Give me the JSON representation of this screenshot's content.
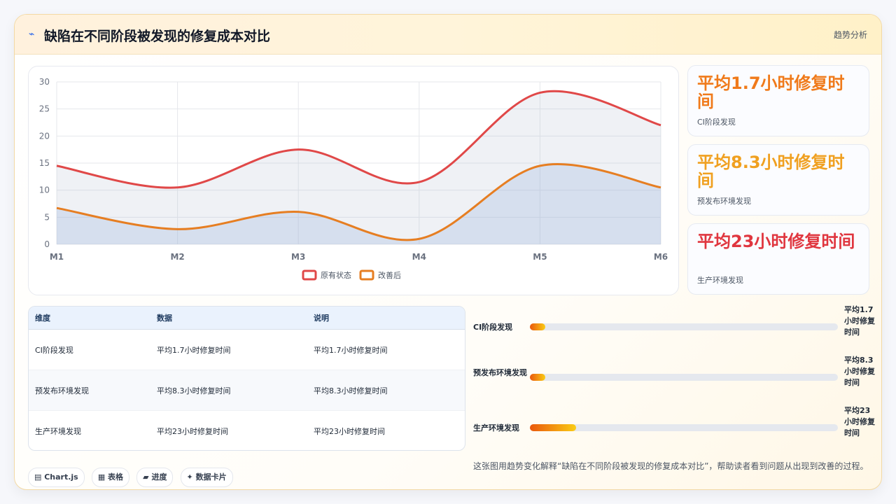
{
  "header": {
    "icon": "pulse-icon",
    "title": "缺陷在不同阶段被发现的修复成本对比",
    "tag": "趋势分析"
  },
  "chart_data": {
    "type": "line",
    "categories": [
      "M1",
      "M2",
      "M3",
      "M4",
      "M5",
      "M6"
    ],
    "series": [
      {
        "name": "原有状态",
        "values": [
          14.5,
          10.5,
          17.5,
          11.5,
          28,
          22
        ],
        "color": "#e04848"
      },
      {
        "name": "改善后",
        "values": [
          6.7,
          2.8,
          6,
          1,
          14.5,
          10.5
        ],
        "color": "#e67e22"
      }
    ],
    "ylim": [
      0,
      30
    ],
    "yticks": [
      0,
      5,
      10,
      15,
      20,
      25,
      30
    ],
    "grid": true,
    "legend": "bottom"
  },
  "stats": [
    {
      "value": "平均1.7小时修复时间",
      "label": "CI阶段发现",
      "color": "#f07a1a"
    },
    {
      "value": "平均8.3小时修复时间",
      "label": "预发布环境发现",
      "color": "#f0a020"
    },
    {
      "value": "平均23小时修复时间",
      "label": "生产环境发现",
      "color": "#e0363f"
    }
  ],
  "table": {
    "headers": [
      "维度",
      "数据",
      "说明"
    ],
    "rows": [
      [
        "CI阶段发现",
        "平均1.7小时修复时间",
        "平均1.7小时修复时间"
      ],
      [
        "预发布环境发现",
        "平均8.3小时修复时间",
        "平均8.3小时修复时间"
      ],
      [
        "生产环境发现",
        "平均23小时修复时间",
        "平均23小时修复时间"
      ]
    ]
  },
  "progress": [
    {
      "label": "CI阶段发现",
      "value_text": "平均1.7小时修复时间",
      "fraction": 0.05
    },
    {
      "label": "预发布环境发现",
      "value_text": "平均8.3小时修复时间",
      "fraction": 0.05
    },
    {
      "label": "生产环境发现",
      "value_text": "平均23小时修复时间",
      "fraction": 0.15
    }
  ],
  "chips": [
    "▤ Chart.js",
    "▦ 表格",
    "▰ 进度",
    "✦ 数据卡片"
  ],
  "note": "这张图用趋势变化解释“缺陷在不同阶段被发现的修复成本对比”，帮助读者看到问题从出现到改善的过程。"
}
